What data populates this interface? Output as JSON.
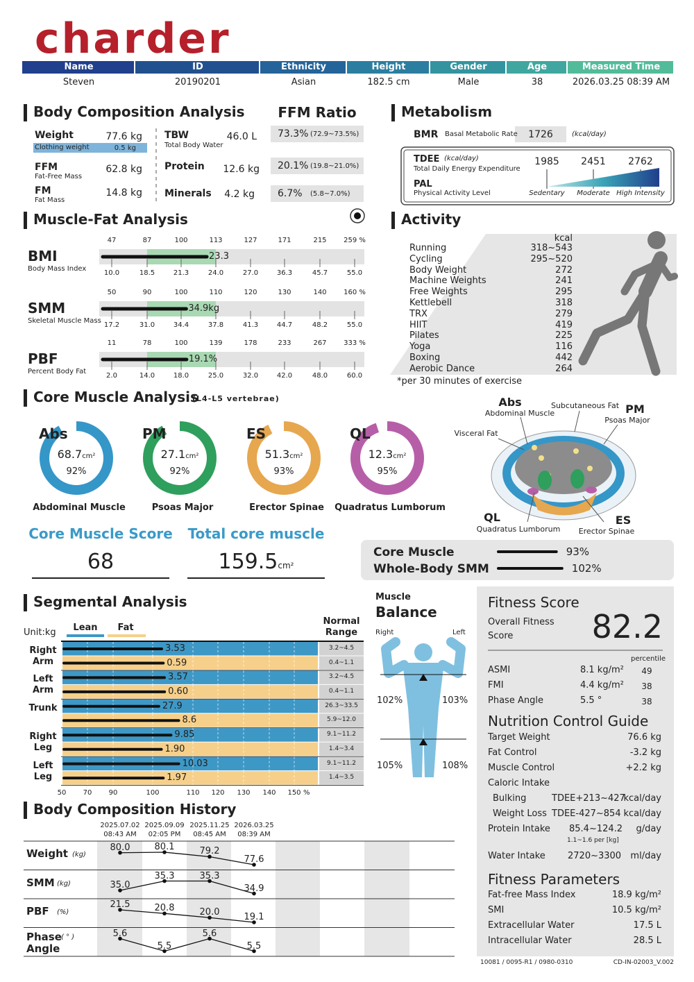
{
  "header": {
    "logo": "charder",
    "columns": [
      "Name",
      "ID",
      "Ethnicity",
      "Height",
      "Gender",
      "Age",
      "Measured Time"
    ],
    "values": [
      "Steven",
      "20190201",
      "Asian",
      "182.5 cm",
      "Male",
      "38",
      "2026.03.25 08:39 AM"
    ]
  },
  "body_composition": {
    "title": "Body Composition Analysis",
    "weight": {
      "label": "Weight",
      "value": "77.6 kg"
    },
    "clothing": {
      "label": "Clothing weight",
      "value": "0.5 kg"
    },
    "ffm": {
      "label": "FFM",
      "desc": "Fat-Free Mass",
      "value": "62.8 kg"
    },
    "fm": {
      "label": "FM",
      "desc": "Fat Mass",
      "value": "14.8 kg"
    },
    "tbw": {
      "label": "TBW",
      "desc": "Total Body Water",
      "value": "46.0 L"
    },
    "protein": {
      "label": "Protein",
      "value": "12.6 kg"
    },
    "minerals": {
      "label": "Minerals",
      "value": "4.2 kg"
    }
  },
  "ffm_ratio": {
    "title": "FFM Ratio",
    "rows": [
      {
        "value": "73.3%",
        "range": "(72.9~73.5%)"
      },
      {
        "value": "20.1%",
        "range": "(19.8~21.0%)"
      },
      {
        "value": "6.7%",
        "range": "(5.8~7.0%)"
      }
    ]
  },
  "metabolism": {
    "title": "Metabolism",
    "bmr": {
      "label": "BMR",
      "desc": "Basal Metabolic Rate",
      "value": "1726",
      "unit": "(kcal/day)"
    },
    "tdee": {
      "label": "TDEE",
      "unit": "(kcal/day)",
      "desc": "Total Daily Energy Expenditure",
      "values": [
        "1985",
        "2451",
        "2762"
      ]
    },
    "pal": {
      "label": "PAL",
      "desc": "Physical Activity Level",
      "levels": [
        "Sedentary",
        "Moderate",
        "High Intensity"
      ]
    }
  },
  "muscle_fat": {
    "title": "Muscle-Fat Analysis",
    "rows": [
      {
        "label": "BMI",
        "desc": "Body Mass Index",
        "percent_ticks": [
          "47",
          "87",
          "100",
          "113",
          "127",
          "171",
          "215",
          "259 %"
        ],
        "scale": [
          {
            "value": 10,
            "label": "10.0"
          },
          {
            "value": 18.5,
            "label": "18.5"
          },
          {
            "value": 21.3,
            "label": "21.3"
          },
          {
            "value": 24,
            "label": "24.0"
          },
          {
            "value": 27,
            "label": "27.0"
          },
          {
            "value": 36.3,
            "label": "36.3"
          },
          {
            "value": 45.7,
            "label": "45.7"
          },
          {
            "value": 55,
            "label": "55.0"
          }
        ],
        "value": 23.3
      },
      {
        "label": "SMM",
        "desc": "Skeletal Muscle Mass",
        "percent_ticks": [
          "50",
          "90",
          "100",
          "110",
          "120",
          "130",
          "140",
          "160 %"
        ],
        "scale": [
          {
            "value": 17.2,
            "label": "17.2"
          },
          {
            "value": 31,
            "label": "31.0"
          },
          {
            "value": 34.4,
            "label": "34.4"
          },
          {
            "value": 37.8,
            "label": "37.8"
          },
          {
            "value": 41.3,
            "label": "41.3"
          },
          {
            "value": 44.7,
            "label": "44.7"
          },
          {
            "value": 48.2,
            "label": "48.2"
          },
          {
            "value": 55,
            "label": "55.0"
          }
        ],
        "value": 34.9,
        "unit": "kg"
      },
      {
        "label": "PBF",
        "desc": "Percent Body Fat",
        "percent_ticks": [
          "11",
          "78",
          "100",
          "139",
          "178",
          "233",
          "267",
          "333 %"
        ],
        "scale": [
          {
            "value": 2,
            "label": "2.0"
          },
          {
            "value": 14,
            "label": "14.0"
          },
          {
            "value": 18,
            "label": "18.0"
          },
          {
            "value": 25,
            "label": "25.0"
          },
          {
            "value": 32,
            "label": "32.0"
          },
          {
            "value": 42,
            "label": "42.0"
          },
          {
            "value": 48,
            "label": "48.0"
          },
          {
            "value": 60,
            "label": "60.0"
          }
        ],
        "value": 19.1,
        "unit": "%"
      }
    ]
  },
  "activity": {
    "title": "Activity",
    "unit": "kcal",
    "rows": [
      {
        "name": "Running",
        "kcal": "318~543"
      },
      {
        "name": "Cycling",
        "kcal": "295~520"
      },
      {
        "name": "Body Weight",
        "kcal": "272"
      },
      {
        "name": "Machine Weights",
        "kcal": "241"
      },
      {
        "name": "Free Weights",
        "kcal": "295"
      },
      {
        "name": "Kettlebell",
        "kcal": "318"
      },
      {
        "name": "TRX",
        "kcal": "279"
      },
      {
        "name": "HIIT",
        "kcal": "419"
      },
      {
        "name": "Pilates",
        "kcal": "225"
      },
      {
        "name": "Yoga",
        "kcal": "116"
      },
      {
        "name": "Boxing",
        "kcal": "442"
      },
      {
        "name": "Aerobic Dance",
        "kcal": "264"
      }
    ],
    "note": "*per 30 minutes of exercise"
  },
  "core": {
    "title": "Core Muscle Analysis",
    "subtitle": "(L4-L5 vertebrae)",
    "muscles": [
      {
        "abbr": "Abs",
        "value": "68.7",
        "unit": "cm²",
        "percent": 92,
        "percent_label": "92%",
        "name": "Abdominal Muscle",
        "color": "#3596c8"
      },
      {
        "abbr": "PM",
        "value": "27.1",
        "unit": "cm²",
        "percent": 92,
        "percent_label": "92%",
        "name": "Psoas Major",
        "color": "#2e9f5c"
      },
      {
        "abbr": "ES",
        "value": "51.3",
        "unit": "cm²",
        "percent": 93,
        "percent_label": "93%",
        "name": "Erector Spinae",
        "color": "#e6a74e"
      },
      {
        "abbr": "QL",
        "value": "12.3",
        "unit": "cm²",
        "percent": 95,
        "percent_label": "95%",
        "name": "Quadratus Lumborum",
        "color": "#b65fa8"
      }
    ],
    "diagram": {
      "abs": "Abs",
      "abs_name": "Abdominal Muscle",
      "subcutaneous": "Subcutaneous Fat",
      "pm": "PM",
      "pm_name": "Psoas Major",
      "visceral": "Visceral Fat",
      "ql": "QL",
      "ql_name": "Quadratus Lumborum",
      "es": "ES",
      "es_name": "Erector Spinae"
    },
    "score": {
      "label": "Core Muscle Score",
      "value": "68"
    },
    "total": {
      "label": "Total core muscle",
      "value": "159.5",
      "unit": "cm²"
    },
    "ratio": [
      {
        "label": "Core Muscle",
        "value": 93,
        "value_label": "93%"
      },
      {
        "label": "Whole-Body SMM",
        "value": 102,
        "value_label": "102%"
      }
    ]
  },
  "segmental": {
    "title": "Segmental Analysis",
    "unit": "Unit:kg",
    "legend": [
      "Lean",
      "Fat"
    ],
    "normal_header": "Normal Range",
    "axis_ticks": [
      50,
      70,
      90,
      100,
      110,
      120,
      130,
      140,
      150
    ],
    "axis_unit": "%",
    "rows": [
      {
        "label": "Right Arm",
        "lean": 3.53,
        "lean_label": "3.53",
        "lean_range": {
          "low": 3.2,
          "high": 4.5,
          "label": "3.2~4.5"
        },
        "fat": 0.59,
        "fat_label": "0.59",
        "fat_range": {
          "low": 0.4,
          "high": 1.1,
          "label": "0.4~1.1"
        }
      },
      {
        "label": "Left Arm",
        "lean": 3.57,
        "lean_label": "3.57",
        "lean_range": {
          "low": 3.2,
          "high": 4.5,
          "label": "3.2~4.5"
        },
        "fat": 0.6,
        "fat_label": "0.60",
        "fat_range": {
          "low": 0.4,
          "high": 1.1,
          "label": "0.4~1.1"
        }
      },
      {
        "label": "Trunk",
        "lean": 27.9,
        "lean_label": "27.9",
        "lean_range": {
          "low": 26.3,
          "high": 33.5,
          "label": "26.3~33.5"
        },
        "fat": 8.6,
        "fat_label": "8.6",
        "fat_range": {
          "low": 5.9,
          "high": 12,
          "label": "5.9~12.0"
        }
      },
      {
        "label": "Right Leg",
        "lean": 9.85,
        "lean_label": "9.85",
        "lean_range": {
          "low": 9.1,
          "high": 11.2,
          "label": "9.1~11.2"
        },
        "fat": 1.9,
        "fat_label": "1.90",
        "fat_range": {
          "low": 1.4,
          "high": 3.4,
          "label": "1.4~3.4"
        }
      },
      {
        "label": "Left Leg",
        "lean": 10.03,
        "lean_label": "10.03",
        "lean_range": {
          "low": 9.1,
          "high": 11.2,
          "label": "9.1~11.2"
        },
        "fat": 1.97,
        "fat_label": "1.97",
        "fat_range": {
          "low": 1.4,
          "high": 3.5,
          "label": "1.4~3.5"
        }
      }
    ]
  },
  "balance": {
    "title_top": "Muscle",
    "title": "Balance",
    "right": "Right",
    "left": "Left",
    "upper": [
      "102%",
      "103%"
    ],
    "lower": [
      "105%",
      "108%"
    ]
  },
  "fitness": {
    "title": "Fitness Score",
    "overall_label": "Overall Fitness Score",
    "overall_value": "82.2",
    "percentile_label": "percentile",
    "rows": [
      {
        "label": "ASMI",
        "value": "8.1 kg/m²",
        "percentile": "49"
      },
      {
        "label": "FMI",
        "value": "4.4 kg/m²",
        "percentile": "38"
      },
      {
        "label": "Phase Angle",
        "value": "5.5 °",
        "percentile": "38"
      }
    ]
  },
  "nutrition": {
    "title": "Nutrition Control Guide",
    "rows": [
      {
        "label": "Target Weight",
        "value": "76.6 kg"
      },
      {
        "label": "Fat Control",
        "value": "-3.2 kg"
      },
      {
        "label": "Muscle Control",
        "value": "+2.2 kg"
      }
    ],
    "caloric_label": "Caloric Intake",
    "caloric_rows": [
      {
        "label": "Bulking",
        "value": "TDEE+213~427",
        "unit": "kcal/day"
      },
      {
        "label": "Weight Loss",
        "value": "TDEE-427~854",
        "unit": "kcal/day"
      }
    ],
    "protein": {
      "label": "Protein Intake",
      "value": "85.4~124.2",
      "unit": "g/day",
      "note": "1.1~1.6 per [kg]"
    },
    "water": {
      "label": "Water Intake",
      "value": "2720~3300",
      "unit": "ml/day"
    }
  },
  "parameters": {
    "title": "Fitness Parameters",
    "rows": [
      {
        "label": "Fat-free Mass Index",
        "value": "18.9 kg/m²"
      },
      {
        "label": "SMI",
        "value": "10.5 kg/m²"
      },
      {
        "label": "Extracellular Water",
        "value": "17.5 L"
      },
      {
        "label": "Intracellular Water",
        "value": "28.5 L"
      }
    ]
  },
  "history": {
    "title": "Body Composition History",
    "dates": [
      "2025.07.02",
      "2025.09.09",
      "2025.11.25",
      "2026.03.25"
    ],
    "times": [
      "08:43 AM",
      "02:05 PM",
      "08:45 AM",
      "08:39 AM"
    ],
    "series": [
      {
        "name": "Weight",
        "unit": "(kg)",
        "values": [
          80,
          80.1,
          79.2,
          77.6
        ],
        "value_labels": [
          "80.0",
          "80.1",
          "79.2",
          "77.6"
        ]
      },
      {
        "name": "SMM",
        "unit": "(kg)",
        "values": [
          35,
          35.3,
          35.3,
          34.9
        ],
        "value_labels": [
          "35.0",
          "35.3",
          "35.3",
          "34.9"
        ]
      },
      {
        "name": "PBF",
        "unit": "(%)",
        "values": [
          21.5,
          20.8,
          20,
          19.1
        ],
        "value_labels": [
          "21.5",
          "20.8",
          "20.0",
          "19.1"
        ]
      },
      {
        "name": "Phase Angle",
        "unit": "( ° )",
        "values": [
          5.6,
          5.5,
          5.6,
          5.5
        ],
        "value_labels": [
          "5.6",
          "5.5",
          "5.6",
          "5.5"
        ]
      }
    ]
  },
  "footer": {
    "left": "10081 / 0095-R1 / 0980-0310",
    "right": "CD-IN-02003_V.002"
  }
}
